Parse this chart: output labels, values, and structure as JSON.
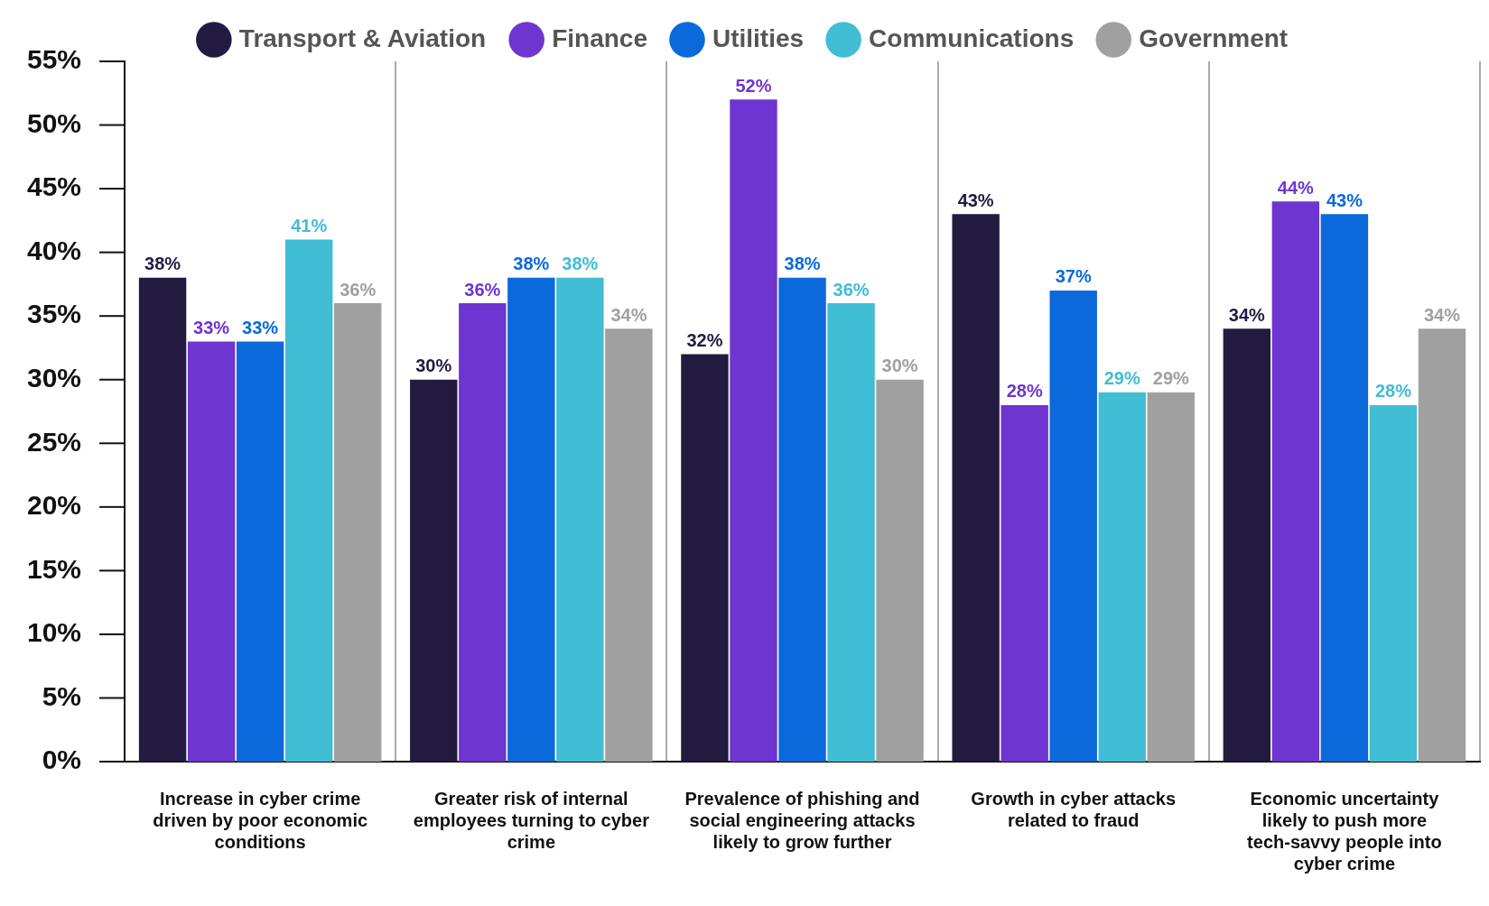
{
  "chart_data": {
    "type": "bar",
    "categories": [
      "Increase in cyber crime driven by poor economic conditions",
      "Greater risk of internal employees turning to cyber crime",
      "Prevalence of phishing and social engineering attacks likely to grow further",
      "Growth in cyber attacks related to fraud",
      "Economic uncertainty likely to push more tech-savvy people into cyber crime"
    ],
    "series": [
      {
        "name": "Transport & Aviation",
        "color": "#231a3f",
        "values": [
          38,
          30,
          32,
          43,
          34
        ],
        "value_labels": [
          "38%",
          "30%",
          "32%",
          "43%",
          "34%"
        ]
      },
      {
        "name": "Finance",
        "color": "#6e35d0",
        "values": [
          33,
          36,
          52,
          28,
          44
        ],
        "value_labels": [
          "33%",
          "36%",
          "52%",
          "28%",
          "44%"
        ]
      },
      {
        "name": "Utilities",
        "color": "#0b69db",
        "values": [
          33,
          38,
          38,
          37,
          43
        ],
        "value_labels": [
          "33%",
          "38%",
          "38%",
          "37%",
          "43%"
        ]
      },
      {
        "name": "Communications",
        "color": "#41bdd4",
        "values": [
          41,
          38,
          36,
          29,
          28
        ],
        "value_labels": [
          "41%",
          "38%",
          "36%",
          "29%",
          "28%"
        ]
      },
      {
        "name": "Government",
        "color": "#a0a0a0",
        "values": [
          36,
          34,
          30,
          29,
          34
        ],
        "value_labels": [
          "36%",
          "34%",
          "30%",
          "29%",
          "34%"
        ]
      }
    ],
    "ylim": [
      0,
      55
    ],
    "yticks": [
      {
        "value": 0,
        "label": "0%"
      },
      {
        "value": 5,
        "label": "5%"
      },
      {
        "value": 10,
        "label": "10%"
      },
      {
        "value": 15,
        "label": "15%"
      },
      {
        "value": 20,
        "label": "20%"
      },
      {
        "value": 25,
        "label": "25%"
      },
      {
        "value": 30,
        "label": "30%"
      },
      {
        "value": 35,
        "label": "35%"
      },
      {
        "value": 40,
        "label": "40%"
      },
      {
        "value": 45,
        "label": "45%"
      },
      {
        "value": 50,
        "label": "50%"
      },
      {
        "value": 55,
        "label": "55%"
      }
    ],
    "grid": "x",
    "legend": "top"
  }
}
